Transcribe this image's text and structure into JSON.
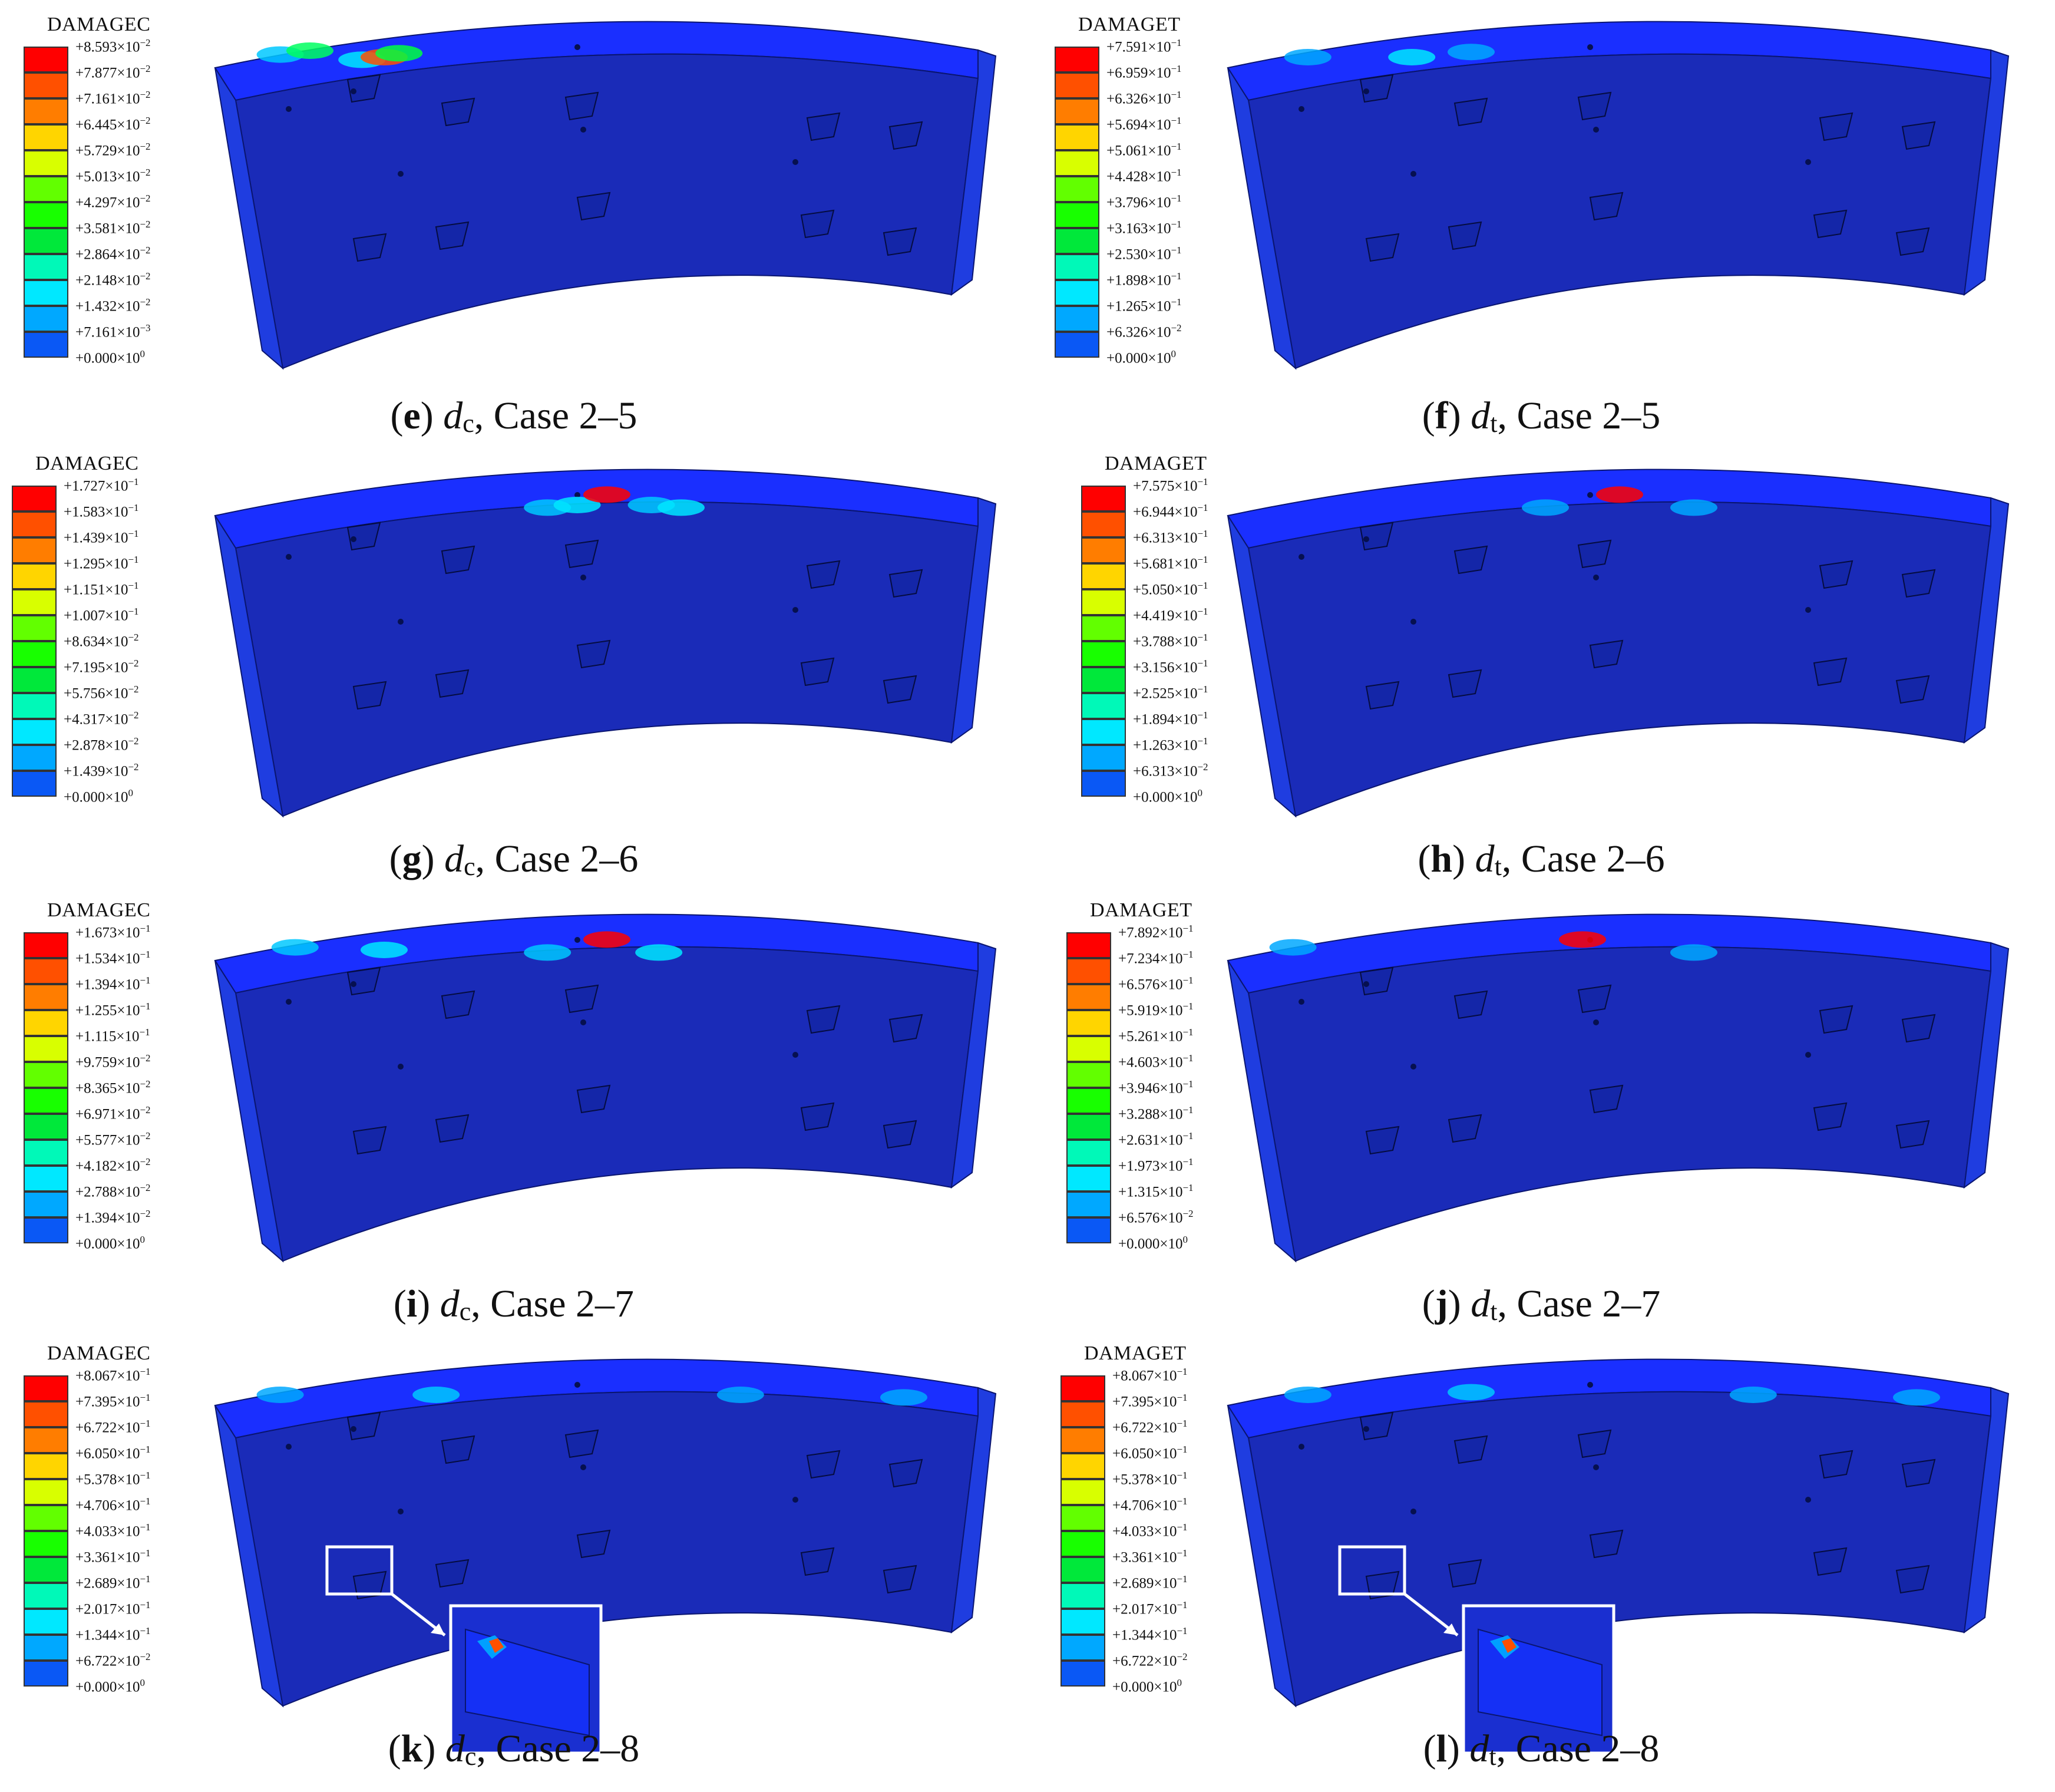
{
  "colormap": [
    "#0000ff",
    "#0a58f5",
    "#00a8ff",
    "#00e8ff",
    "#00f9b8",
    "#00e83a",
    "#18ff00",
    "#62ff00",
    "#d8ff00",
    "#ffd500",
    "#ff7d00",
    "#ff5000",
    "#ff0000"
  ],
  "segment_color": "#1a33d6",
  "panels": [
    {
      "id": "e",
      "letter": "e",
      "symbol": "d",
      "subscript": "c",
      "case": ", Case 2–5",
      "legend_title": "DAMAGEC",
      "ticks": [
        "+8.593×10",
        "+7.877×10",
        "+7.161×10",
        "+6.445×10",
        "+5.729×10",
        "+5.013×10",
        "+4.297×10",
        "+3.581×10",
        "+2.864×10",
        "+2.148×10",
        "+1.432×10",
        "+7.161×10",
        "+0.000×10"
      ],
      "exponents": [
        "−2",
        "−2",
        "−2",
        "−2",
        "−2",
        "−2",
        "−2",
        "−2",
        "−2",
        "−2",
        "−2",
        "−3",
        "0"
      ],
      "hotspots": [
        [
          0.06,
          0.08,
          "#00c8ff"
        ],
        [
          0.1,
          0.05,
          "#00ff60"
        ],
        [
          0.17,
          0.12,
          "#00e8ff"
        ],
        [
          0.2,
          0.1,
          "#ff5000"
        ],
        [
          0.22,
          0.07,
          "#00ff40"
        ]
      ]
    },
    {
      "id": "f",
      "letter": "f",
      "symbol": "d",
      "subscript": "t",
      "case": ", Case 2–5",
      "legend_title": "DAMAGET",
      "ticks": [
        "+7.591×10",
        "+6.959×10",
        "+6.326×10",
        "+5.694×10",
        "+5.061×10",
        "+4.428×10",
        "+3.796×10",
        "+3.163×10",
        "+2.530×10",
        "+1.898×10",
        "+1.265×10",
        "+6.326×10",
        "+0.000×10"
      ],
      "exponents": [
        "−1",
        "−1",
        "−1",
        "−1",
        "−1",
        "−1",
        "−1",
        "−1",
        "−1",
        "−1",
        "−1",
        "−2",
        "0"
      ],
      "hotspots": [
        [
          0.08,
          0.1,
          "#00a8ff"
        ],
        [
          0.22,
          0.1,
          "#00e8ff"
        ],
        [
          0.3,
          0.06,
          "#00a8ff"
        ]
      ]
    },
    {
      "id": "g",
      "letter": "g",
      "symbol": "d",
      "subscript": "c",
      "case": ", Case 2–6",
      "legend_title": "DAMAGEC",
      "ticks": [
        "+1.727×10",
        "+1.583×10",
        "+1.439×10",
        "+1.295×10",
        "+1.151×10",
        "+1.007×10",
        "+8.634×10",
        "+7.195×10",
        "+5.756×10",
        "+4.317×10",
        "+2.878×10",
        "+1.439×10",
        "+0.000×10"
      ],
      "exponents": [
        "−1",
        "−1",
        "−1",
        "−1",
        "−1",
        "−1",
        "−2",
        "−2",
        "−2",
        "−2",
        "−2",
        "−2",
        "0"
      ],
      "hotspots": [
        [
          0.42,
          0.12,
          "#00c8ff"
        ],
        [
          0.46,
          0.1,
          "#00e8ff"
        ],
        [
          0.56,
          0.1,
          "#00c8ff"
        ],
        [
          0.6,
          0.12,
          "#00e8ff"
        ],
        [
          0.5,
          0.02,
          "#ff0000"
        ]
      ]
    },
    {
      "id": "h",
      "letter": "h",
      "symbol": "d",
      "subscript": "t",
      "case": ", Case 2–6",
      "legend_title": "DAMAGET",
      "ticks": [
        "+7.575×10",
        "+6.944×10",
        "+6.313×10",
        "+5.681×10",
        "+5.050×10",
        "+4.419×10",
        "+3.788×10",
        "+3.156×10",
        "+2.525×10",
        "+1.894×10",
        "+1.263×10",
        "+6.313×10",
        "+0.000×10"
      ],
      "exponents": [
        "−1",
        "−1",
        "−1",
        "−1",
        "−1",
        "−1",
        "−1",
        "−1",
        "−1",
        "−1",
        "−1",
        "−2",
        "0"
      ],
      "hotspots": [
        [
          0.4,
          0.12,
          "#00a8ff"
        ],
        [
          0.6,
          0.12,
          "#00a8ff"
        ],
        [
          0.5,
          0.02,
          "#ff0000"
        ]
      ]
    },
    {
      "id": "i",
      "letter": "i",
      "symbol": "d",
      "subscript": "c",
      "case": ", Case 2–7",
      "legend_title": "DAMAGEC",
      "ticks": [
        "+1.673×10",
        "+1.534×10",
        "+1.394×10",
        "+1.255×10",
        "+1.115×10",
        "+9.759×10",
        "+8.365×10",
        "+6.971×10",
        "+5.577×10",
        "+4.182×10",
        "+2.788×10",
        "+1.394×10",
        "+0.000×10"
      ],
      "exponents": [
        "−1",
        "−1",
        "−1",
        "−1",
        "−1",
        "−2",
        "−2",
        "−2",
        "−2",
        "−2",
        "−2",
        "−2",
        "0"
      ],
      "hotspots": [
        [
          0.08,
          0.08,
          "#00c8ff"
        ],
        [
          0.2,
          0.1,
          "#00e8ff"
        ],
        [
          0.42,
          0.12,
          "#00c8ff"
        ],
        [
          0.57,
          0.12,
          "#00e8ff"
        ],
        [
          0.5,
          0.02,
          "#ff0000"
        ]
      ]
    },
    {
      "id": "j",
      "letter": "j",
      "symbol": "d",
      "subscript": "t",
      "case": ", Case 2–7",
      "legend_title": "DAMAGET",
      "ticks": [
        "+7.892×10",
        "+7.234×10",
        "+6.576×10",
        "+5.919×10",
        "+5.261×10",
        "+4.603×10",
        "+3.946×10",
        "+3.288×10",
        "+2.631×10",
        "+1.973×10",
        "+1.315×10",
        "+6.576×10",
        "+0.000×10"
      ],
      "exponents": [
        "−1",
        "−1",
        "−1",
        "−1",
        "−1",
        "−1",
        "−1",
        "−1",
        "−1",
        "−1",
        "−1",
        "−2",
        "0"
      ],
      "hotspots": [
        [
          0.06,
          0.08,
          "#00a8ff"
        ],
        [
          0.6,
          0.12,
          "#00a8ff"
        ],
        [
          0.45,
          0.02,
          "#ff0000"
        ]
      ]
    },
    {
      "id": "k",
      "letter": "k",
      "symbol": "d",
      "subscript": "c",
      "case": ", Case 2–8",
      "legend_title": "DAMAGEC",
      "ticks": [
        "+8.067×10",
        "+7.395×10",
        "+6.722×10",
        "+6.050×10",
        "+5.378×10",
        "+4.706×10",
        "+4.033×10",
        "+3.361×10",
        "+2.689×10",
        "+2.017×10",
        "+1.344×10",
        "+6.722×10",
        "+0.000×10"
      ],
      "exponents": [
        "−1",
        "−1",
        "−1",
        "−1",
        "−1",
        "−1",
        "−1",
        "−1",
        "−1",
        "−1",
        "−1",
        "−2",
        "0"
      ],
      "hotspots": [
        [
          0.06,
          0.1,
          "#00a8ff"
        ],
        [
          0.27,
          0.1,
          "#00c8ff"
        ],
        [
          0.68,
          0.1,
          "#00a8ff"
        ],
        [
          0.9,
          0.12,
          "#00a8ff"
        ]
      ],
      "inset": true
    },
    {
      "id": "l",
      "letter": "l",
      "symbol": "d",
      "subscript": "t",
      "case": ", Case 2–8",
      "legend_title": "DAMAGET",
      "ticks": [
        "+8.067×10",
        "+7.395×10",
        "+6.722×10",
        "+6.050×10",
        "+5.378×10",
        "+4.706×10",
        "+4.033×10",
        "+3.361×10",
        "+2.689×10",
        "+2.017×10",
        "+1.344×10",
        "+6.722×10",
        "+0.000×10"
      ],
      "exponents": [
        "−1",
        "−1",
        "−1",
        "−1",
        "−1",
        "−1",
        "−1",
        "−1",
        "−1",
        "−1",
        "−1",
        "−2",
        "0"
      ],
      "hotspots": [
        [
          0.08,
          0.1,
          "#00a8ff"
        ],
        [
          0.3,
          0.08,
          "#00c8ff"
        ],
        [
          0.68,
          0.1,
          "#00a8ff"
        ],
        [
          0.9,
          0.12,
          "#00a8ff"
        ]
      ],
      "inset": true
    }
  ]
}
